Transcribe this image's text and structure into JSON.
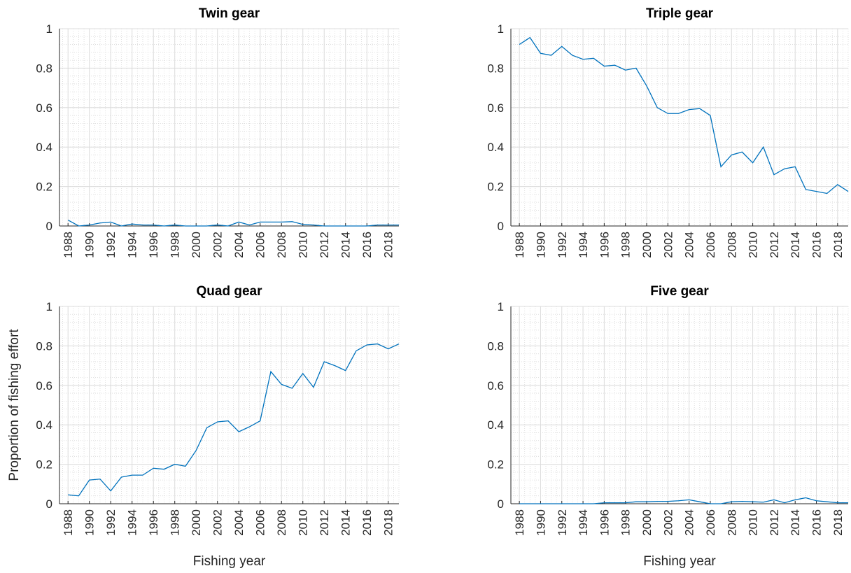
{
  "chart_data": [
    {
      "type": "line",
      "title": "Twin gear",
      "x": [
        1988,
        1989,
        1990,
        1991,
        1992,
        1993,
        1994,
        1995,
        1996,
        1997,
        1998,
        1999,
        2000,
        2001,
        2002,
        2003,
        2004,
        2005,
        2006,
        2007,
        2008,
        2009,
        2010,
        2011,
        2012,
        2013,
        2014,
        2015,
        2016,
        2017,
        2018,
        2019
      ],
      "values": [
        0.03,
        0.0,
        0.005,
        0.015,
        0.02,
        0.0,
        0.01,
        0.005,
        0.005,
        0.0,
        0.005,
        0.0,
        0.0,
        0.0,
        0.005,
        0.0,
        0.02,
        0.005,
        0.02,
        0.02,
        0.02,
        0.022,
        0.008,
        0.005,
        0.0,
        0.0,
        0.0,
        0.0,
        0.0,
        0.005,
        0.005,
        0.005
      ],
      "color": "#0072bd",
      "xlim": [
        1987.2,
        2019
      ],
      "ylim": [
        0,
        1
      ],
      "xticks": [
        1988,
        1990,
        1992,
        1994,
        1996,
        1998,
        2000,
        2002,
        2004,
        2006,
        2008,
        2010,
        2012,
        2014,
        2016,
        2018
      ],
      "yticks": [
        0,
        0.2,
        0.4,
        0.6,
        0.8,
        1
      ],
      "grid": true,
      "minor_grid": true
    },
    {
      "type": "line",
      "title": "Triple gear",
      "x": [
        1988,
        1989,
        1990,
        1991,
        1992,
        1993,
        1994,
        1995,
        1996,
        1997,
        1998,
        1999,
        2000,
        2001,
        2002,
        2003,
        2004,
        2005,
        2006,
        2007,
        2008,
        2009,
        2010,
        2011,
        2012,
        2013,
        2014,
        2015,
        2016,
        2017,
        2018,
        2019
      ],
      "values": [
        0.92,
        0.955,
        0.875,
        0.865,
        0.91,
        0.865,
        0.845,
        0.85,
        0.81,
        0.815,
        0.79,
        0.8,
        0.71,
        0.6,
        0.57,
        0.57,
        0.59,
        0.595,
        0.56,
        0.3,
        0.36,
        0.375,
        0.32,
        0.4,
        0.26,
        0.29,
        0.3,
        0.185,
        0.175,
        0.165,
        0.21,
        0.175
      ],
      "color": "#0072bd",
      "xlim": [
        1987.2,
        2019
      ],
      "ylim": [
        0,
        1
      ],
      "xticks": [
        1988,
        1990,
        1992,
        1994,
        1996,
        1998,
        2000,
        2002,
        2004,
        2006,
        2008,
        2010,
        2012,
        2014,
        2016,
        2018
      ],
      "yticks": [
        0,
        0.2,
        0.4,
        0.6,
        0.8,
        1
      ],
      "grid": true,
      "minor_grid": true
    },
    {
      "type": "line",
      "title": "Quad gear",
      "xlabel": "Fishing year",
      "ylabel": "Proportion of fishing effort",
      "x": [
        1988,
        1989,
        1990,
        1991,
        1992,
        1993,
        1994,
        1995,
        1996,
        1997,
        1998,
        1999,
        2000,
        2001,
        2002,
        2003,
        2004,
        2005,
        2006,
        2007,
        2008,
        2009,
        2010,
        2011,
        2012,
        2013,
        2014,
        2015,
        2016,
        2017,
        2018,
        2019
      ],
      "values": [
        0.045,
        0.04,
        0.12,
        0.125,
        0.065,
        0.135,
        0.145,
        0.145,
        0.18,
        0.175,
        0.2,
        0.19,
        0.27,
        0.385,
        0.415,
        0.42,
        0.365,
        0.39,
        0.42,
        0.67,
        0.605,
        0.585,
        0.66,
        0.59,
        0.72,
        0.7,
        0.675,
        0.775,
        0.805,
        0.81,
        0.785,
        0.81
      ],
      "color": "#0072bd",
      "xlim": [
        1987.2,
        2019
      ],
      "ylim": [
        0,
        1
      ],
      "xticks": [
        1988,
        1990,
        1992,
        1994,
        1996,
        1998,
        2000,
        2002,
        2004,
        2006,
        2008,
        2010,
        2012,
        2014,
        2016,
        2018
      ],
      "yticks": [
        0,
        0.2,
        0.4,
        0.6,
        0.8,
        1
      ],
      "grid": true,
      "minor_grid": true
    },
    {
      "type": "line",
      "title": "Five gear",
      "xlabel": "Fishing year",
      "x": [
        1988,
        1989,
        1990,
        1991,
        1992,
        1993,
        1994,
        1995,
        1996,
        1997,
        1998,
        1999,
        2000,
        2001,
        2002,
        2003,
        2004,
        2005,
        2006,
        2007,
        2008,
        2009,
        2010,
        2011,
        2012,
        2013,
        2014,
        2015,
        2016,
        2017,
        2018,
        2019
      ],
      "values": [
        0.0,
        0.0,
        0.0,
        0.0,
        0.0,
        0.0,
        0.0,
        0.0,
        0.005,
        0.005,
        0.005,
        0.01,
        0.01,
        0.012,
        0.012,
        0.015,
        0.02,
        0.01,
        0.0,
        0.0,
        0.01,
        0.012,
        0.01,
        0.008,
        0.02,
        0.005,
        0.02,
        0.03,
        0.015,
        0.01,
        0.005,
        0.005
      ],
      "color": "#0072bd",
      "xlim": [
        1987.2,
        2019
      ],
      "ylim": [
        0,
        1
      ],
      "xticks": [
        1988,
        1990,
        1992,
        1994,
        1996,
        1998,
        2000,
        2002,
        2004,
        2006,
        2008,
        2010,
        2012,
        2014,
        2016,
        2018
      ],
      "yticks": [
        0,
        0.2,
        0.4,
        0.6,
        0.8,
        1
      ],
      "grid": true,
      "minor_grid": true
    }
  ]
}
